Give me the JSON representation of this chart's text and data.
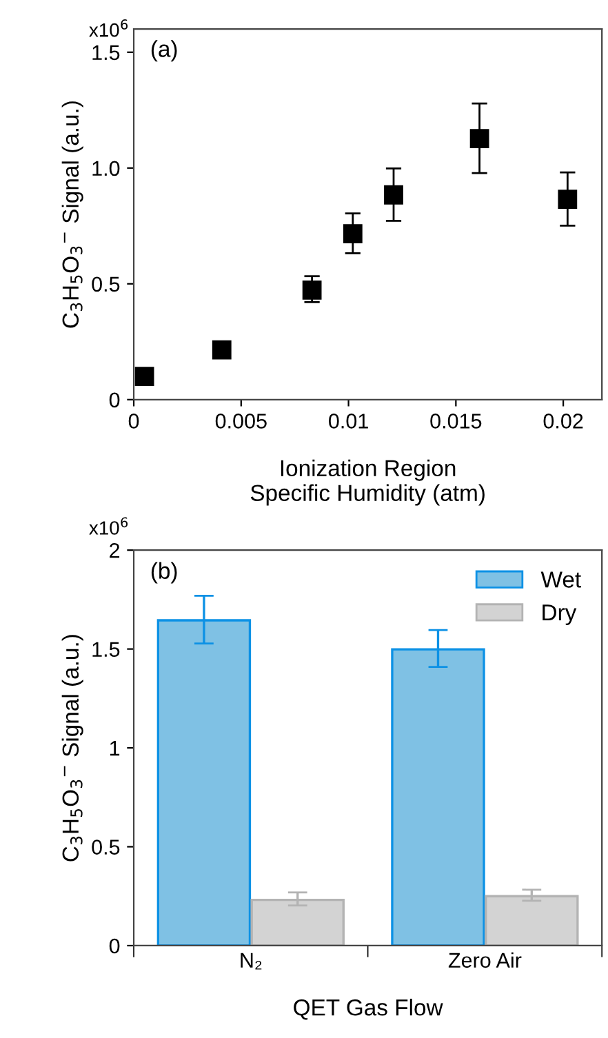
{
  "chart_data": [
    {
      "type": "scatter",
      "xlabel": "Ionization Region\nSpecific Humidity (atm)",
      "ylabel": "C$_{3}$H$_{5}$O$_{3}$$^{−}$ Signal (a.u.)",
      "annotations": [
        "(a)",
        "x10$^{6}$"
      ],
      "marker": "square",
      "x": [
        0.0005,
        0.0041,
        0.0083,
        0.0102,
        0.0121,
        0.0161,
        0.0202
      ],
      "series": [
        {
          "color": "#000000",
          "values": [
            0.1,
            0.215,
            0.473,
            0.716,
            0.884,
            1.127,
            0.865
          ],
          "errors": [
            null,
            null,
            [
              0.421,
              0.533
            ],
            [
              0.632,
              0.804
            ],
            [
              0.772,
              0.998
            ],
            [
              0.978,
              1.279
            ],
            [
              0.751,
              0.981
            ]
          ]
        }
      ],
      "xlim": [
        0,
        0.0218
      ],
      "xticks": [
        0,
        0.005,
        0.01,
        0.015,
        0.02
      ],
      "ylim": [
        0,
        1.6
      ],
      "yticks": [
        0,
        0.5,
        {
          "value": 1.0,
          "label": "1.0"
        },
        1.5
      ],
      "grid": false,
      "legend": false
    },
    {
      "type": "bar",
      "xlabel": "QET Gas Flow",
      "ylabel": "C$_{3}$H$_{5}$O$_{3}$$^{−}$ Signal (a.u.)",
      "annotations": [
        "(b)",
        "x10$^{6}$"
      ],
      "categories": [
        "N₂",
        "Zero Air"
      ],
      "series": [
        {
          "name": "Wet",
          "color": "#7fc1e4",
          "values": [
            1.645,
            1.498
          ],
          "errors": [
            [
              1.528,
              1.769
            ],
            [
              1.409,
              1.596
            ]
          ]
        },
        {
          "name": "Dry",
          "color": "#d3d3d3",
          "values": [
            0.231,
            0.25
          ],
          "errors": [
            [
              0.203,
              0.269
            ],
            [
              0.227,
              0.283
            ]
          ]
        }
      ],
      "ylim": [
        0,
        2
      ],
      "yticks": [
        0,
        0.5,
        1,
        1.5,
        2
      ],
      "grid": false,
      "legend": "top right"
    }
  ]
}
